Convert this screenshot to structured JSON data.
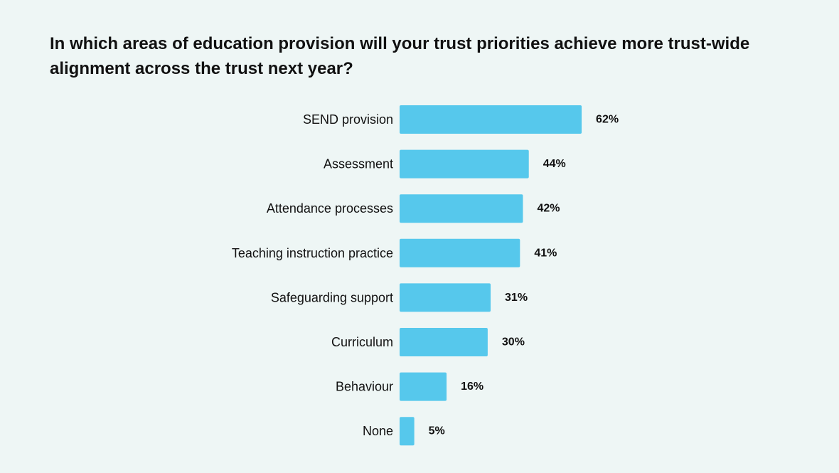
{
  "chart_data": {
    "type": "bar",
    "orientation": "horizontal",
    "title": "In which areas of education provision will your trust priorities achieve more trust-wide alignment across the trust next year?",
    "xlabel": "",
    "ylabel": "",
    "categories": [
      "SEND provision",
      "Assessment",
      "Attendance processes",
      "Teaching instruction practice",
      "Safeguarding support",
      "Curriculum",
      "Behaviour",
      "None"
    ],
    "values": [
      62,
      44,
      42,
      41,
      31,
      30,
      16,
      5
    ],
    "value_labels": [
      "62%",
      "44%",
      "42%",
      "41%",
      "31%",
      "30%",
      "16%",
      "5%"
    ],
    "unit": "%",
    "xlim": [
      0,
      100
    ],
    "grid": false,
    "legend": "none",
    "colors": {
      "bar": "#56c8ec",
      "background": "#eef6f5",
      "text": "#111111"
    }
  }
}
